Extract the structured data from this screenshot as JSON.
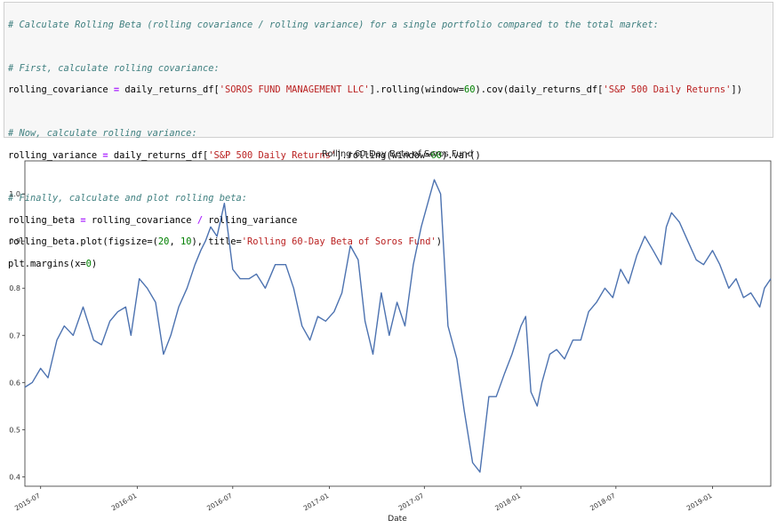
{
  "code": {
    "comment_main": "# Calculate Rolling Beta (rolling covariance / rolling variance) for a single portfolio compared to the total market:",
    "comment_cov": "# First, calculate rolling covariance:",
    "cov_var": "rolling_covariance",
    "cov_df": "daily_returns_df[",
    "cov_key": "'SOROS FUND MANAGEMENT LLC'",
    "cov_rolling": "].rolling",
    "cov_window_open": "(window=",
    "cov_window": "60",
    "cov_cov": ").cov",
    "cov_arg_open": "(daily_returns_df[",
    "cov_arg_key": "'S&P 500 Daily Returns'",
    "cov_arg_close": "])",
    "comment_var": "# Now, calculate rolling variance:",
    "var_var": "rolling_variance",
    "var_df": "daily_returns_df[",
    "var_key": "'S&P 500 Daily Returns'",
    "var_rolling": "].rolling",
    "var_window_open": "(window=",
    "var_window": "60",
    "var_var_call": ").var",
    "var_close": "()",
    "comment_beta": "# Finally, calculate and plot rolling beta:",
    "beta_var": "rolling_beta",
    "beta_expr_a": "rolling_covariance",
    "beta_div": "/",
    "beta_expr_b": "rolling_variance",
    "plot_obj": "rolling_beta.plot",
    "plot_args_a": "(figsize=(",
    "plot_w": "20",
    "plot_sep": ", ",
    "plot_h": "10",
    "plot_args_b": "), title=",
    "plot_title": "'Rolling 60-Day Beta of Soros Fund'",
    "plot_close": ")",
    "margins_obj": "plt.margins",
    "margins_open": "(x=",
    "margins_val": "0",
    "margins_close": ")"
  },
  "chart_data": {
    "type": "line",
    "title": "Rolling 60-Day Beta of Soros Fund",
    "xlabel": "Date",
    "ylabel": "",
    "x_range": [
      "2015-06-01",
      "2019-04-22"
    ],
    "ylim": [
      0.38,
      1.07
    ],
    "yticks": [
      0.4,
      0.5,
      0.6,
      0.7,
      0.8,
      0.9,
      1.0
    ],
    "ytick_labels": [
      "0.4",
      "0.5",
      "0.6",
      "0.7",
      "0.8",
      "0.9",
      "1.0"
    ],
    "xticks": [
      "2015-07-01",
      "2016-01-01",
      "2016-07-01",
      "2017-01-01",
      "2017-07-01",
      "2018-01-01",
      "2018-07-01",
      "2019-01-01"
    ],
    "xtick_labels": [
      "2015-07",
      "2016-01",
      "2016-07",
      "2017-01",
      "2017-07",
      "2018-01",
      "2018-07",
      "2019-01"
    ],
    "line_color": "#4c72b0",
    "grid": false,
    "legend": false,
    "series": [
      {
        "x": [
          "2015-06-01",
          "2015-06-15",
          "2015-07-01",
          "2015-07-15",
          "2015-08-01",
          "2015-08-15",
          "2015-09-01",
          "2015-09-20",
          "2015-10-10",
          "2015-10-25",
          "2015-11-10",
          "2015-11-25",
          "2015-12-10",
          "2015-12-20",
          "2016-01-05",
          "2016-01-20",
          "2016-02-05",
          "2016-02-20",
          "2016-03-05",
          "2016-03-20",
          "2016-04-05",
          "2016-04-20",
          "2016-05-01",
          "2016-05-10",
          "2016-05-20",
          "2016-06-01",
          "2016-06-15",
          "2016-07-01",
          "2016-07-15",
          "2016-08-01",
          "2016-08-15",
          "2016-09-01",
          "2016-09-20",
          "2016-10-10",
          "2016-10-25",
          "2016-11-10",
          "2016-11-25",
          "2016-12-10",
          "2016-12-25",
          "2017-01-10",
          "2017-01-25",
          "2017-02-10",
          "2017-02-25",
          "2017-03-10",
          "2017-03-25",
          "2017-04-10",
          "2017-04-25",
          "2017-05-10",
          "2017-05-25",
          "2017-06-10",
          "2017-06-25",
          "2017-07-10",
          "2017-07-20",
          "2017-08-01",
          "2017-08-15",
          "2017-09-01",
          "2017-09-15",
          "2017-10-01",
          "2017-10-15",
          "2017-11-01",
          "2017-11-15",
          "2017-12-01",
          "2017-12-15",
          "2018-01-01",
          "2018-01-10",
          "2018-01-20",
          "2018-02-01",
          "2018-02-10",
          "2018-02-25",
          "2018-03-10",
          "2018-03-25",
          "2018-04-10",
          "2018-04-25",
          "2018-05-10",
          "2018-05-25",
          "2018-06-10",
          "2018-06-25",
          "2018-07-10",
          "2018-07-25",
          "2018-08-10",
          "2018-08-25",
          "2018-09-10",
          "2018-09-25",
          "2018-10-05",
          "2018-10-15",
          "2018-10-30",
          "2018-11-15",
          "2018-12-01",
          "2018-12-15",
          "2019-01-01",
          "2019-01-15",
          "2019-02-01",
          "2019-02-15",
          "2019-03-01",
          "2019-03-15",
          "2019-04-01",
          "2019-04-10",
          "2019-04-22"
        ],
        "y": [
          0.59,
          0.6,
          0.63,
          0.61,
          0.69,
          0.72,
          0.7,
          0.76,
          0.69,
          0.68,
          0.73,
          0.75,
          0.76,
          0.7,
          0.82,
          0.8,
          0.77,
          0.66,
          0.7,
          0.76,
          0.8,
          0.85,
          0.88,
          0.9,
          0.93,
          0.91,
          0.98,
          0.84,
          0.82,
          0.82,
          0.83,
          0.8,
          0.85,
          0.85,
          0.8,
          0.72,
          0.69,
          0.74,
          0.73,
          0.75,
          0.79,
          0.89,
          0.86,
          0.73,
          0.66,
          0.79,
          0.7,
          0.77,
          0.72,
          0.85,
          0.93,
          0.99,
          1.03,
          1.0,
          0.72,
          0.65,
          0.54,
          0.43,
          0.41,
          0.57,
          0.57,
          0.62,
          0.66,
          0.72,
          0.74,
          0.58,
          0.55,
          0.6,
          0.66,
          0.67,
          0.65,
          0.69,
          0.69,
          0.75,
          0.77,
          0.8,
          0.78,
          0.84,
          0.81,
          0.87,
          0.91,
          0.88,
          0.85,
          0.93,
          0.96,
          0.94,
          0.9,
          0.86,
          0.85,
          0.88,
          0.85,
          0.8,
          0.82,
          0.78,
          0.79,
          0.76,
          0.8,
          0.82
        ]
      }
    ]
  }
}
